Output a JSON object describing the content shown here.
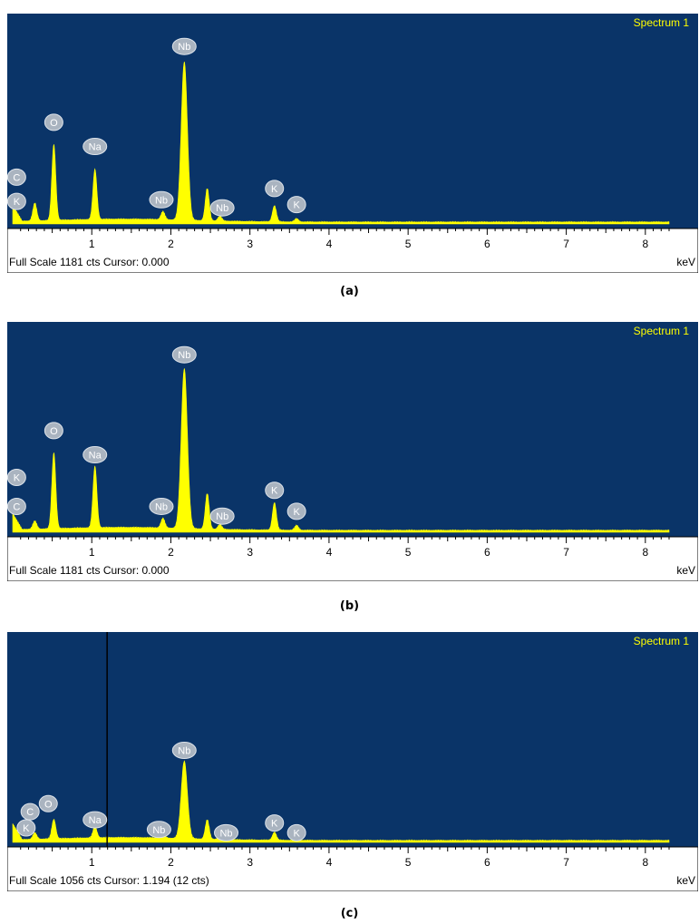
{
  "chart_data": [
    {
      "type": "line",
      "panel_label": "(a)",
      "legend_text": "Spectrum 1",
      "status_text": "Full Scale 1181 cts Cursor: 0.000",
      "x_unit": "keV",
      "x_ticks": [
        "1",
        "2",
        "3",
        "4",
        "5",
        "6",
        "7",
        "8"
      ],
      "xlim": [
        0.0,
        8.3
      ],
      "full_scale_cts": 1181,
      "peaks": [
        {
          "element": "C",
          "x": 0.28,
          "y": 0.11
        },
        {
          "element": "O",
          "x": 0.52,
          "y": 0.47
        },
        {
          "element": "Na",
          "x": 1.04,
          "y": 0.31
        },
        {
          "element": "Nb",
          "x": 1.9,
          "y": 0.05
        },
        {
          "element": "Nb",
          "x": 2.17,
          "y": 0.98
        },
        {
          "element": "Nb",
          "x": 2.46,
          "y": 0.2
        },
        {
          "element": "Nb",
          "x": 2.62,
          "y": 0.03
        },
        {
          "element": "K",
          "x": 3.31,
          "y": 0.1
        },
        {
          "element": "K",
          "x": 3.59,
          "y": 0.02
        }
      ],
      "labels": [
        {
          "text": "Nb",
          "x": 2.17,
          "y": 1.1
        },
        {
          "text": "O",
          "x": 0.52,
          "y": 0.63
        },
        {
          "text": "Na",
          "x": 1.04,
          "y": 0.48
        },
        {
          "text": "C",
          "x": 0.05,
          "y": 0.29
        },
        {
          "text": "K",
          "x": 0.05,
          "y": 0.14
        },
        {
          "text": "Nb",
          "x": 1.88,
          "y": 0.15
        },
        {
          "text": "Nb",
          "x": 2.65,
          "y": 0.1
        },
        {
          "text": "K",
          "x": 3.31,
          "y": 0.22
        },
        {
          "text": "K",
          "x": 3.59,
          "y": 0.12
        }
      ]
    },
    {
      "type": "line",
      "panel_label": "(b)",
      "legend_text": "Spectrum 1",
      "status_text": "Full Scale 1181 cts Cursor: 0.000",
      "x_unit": "keV",
      "x_ticks": [
        "1",
        "2",
        "3",
        "4",
        "5",
        "6",
        "7",
        "8"
      ],
      "xlim": [
        0.0,
        8.3
      ],
      "full_scale_cts": 1181,
      "peaks": [
        {
          "element": "C",
          "x": 0.28,
          "y": 0.05
        },
        {
          "element": "O",
          "x": 0.52,
          "y": 0.47
        },
        {
          "element": "Na",
          "x": 1.04,
          "y": 0.38
        },
        {
          "element": "Nb",
          "x": 1.9,
          "y": 0.06
        },
        {
          "element": "Nb",
          "x": 2.17,
          "y": 0.99
        },
        {
          "element": "Nb",
          "x": 2.46,
          "y": 0.22
        },
        {
          "element": "Nb",
          "x": 2.62,
          "y": 0.03
        },
        {
          "element": "K",
          "x": 3.31,
          "y": 0.17
        },
        {
          "element": "K",
          "x": 3.59,
          "y": 0.03
        }
      ],
      "labels": [
        {
          "text": "Nb",
          "x": 2.17,
          "y": 1.1
        },
        {
          "text": "O",
          "x": 0.52,
          "y": 0.63
        },
        {
          "text": "Na",
          "x": 1.04,
          "y": 0.48
        },
        {
          "text": "K",
          "x": 0.05,
          "y": 0.34
        },
        {
          "text": "C",
          "x": 0.05,
          "y": 0.16
        },
        {
          "text": "Nb",
          "x": 1.88,
          "y": 0.16
        },
        {
          "text": "Nb",
          "x": 2.65,
          "y": 0.1
        },
        {
          "text": "K",
          "x": 3.31,
          "y": 0.26
        },
        {
          "text": "K",
          "x": 3.59,
          "y": 0.13
        }
      ]
    },
    {
      "type": "line",
      "panel_label": "(c)",
      "legend_text": "Spectrum 1",
      "status_text": "Full Scale 1056 cts Cursor: 1.194  (12 cts)",
      "x_unit": "keV",
      "x_ticks": [
        "1",
        "2",
        "3",
        "4",
        "5",
        "6",
        "7",
        "8"
      ],
      "xlim": [
        0.0,
        8.3
      ],
      "full_scale_cts": 1056,
      "cursor_kev": 1.194,
      "peaks": [
        {
          "element": "C",
          "x": 0.28,
          "y": 0.04
        },
        {
          "element": "O",
          "x": 0.52,
          "y": 0.12
        },
        {
          "element": "Na",
          "x": 1.04,
          "y": 0.07
        },
        {
          "element": "Nb",
          "x": 1.9,
          "y": 0.03
        },
        {
          "element": "Nb",
          "x": 2.17,
          "y": 0.48
        },
        {
          "element": "Nb",
          "x": 2.46,
          "y": 0.12
        },
        {
          "element": "Nb",
          "x": 2.62,
          "y": 0.02
        },
        {
          "element": "K",
          "x": 3.31,
          "y": 0.05
        },
        {
          "element": "K",
          "x": 3.59,
          "y": 0.02
        }
      ],
      "labels": [
        {
          "text": "Nb",
          "x": 2.17,
          "y": 0.57
        },
        {
          "text": "O",
          "x": 0.45,
          "y": 0.24
        },
        {
          "text": "C",
          "x": 0.22,
          "y": 0.19
        },
        {
          "text": "K",
          "x": 0.17,
          "y": 0.09
        },
        {
          "text": "Na",
          "x": 1.04,
          "y": 0.14
        },
        {
          "text": "Nb",
          "x": 1.85,
          "y": 0.08
        },
        {
          "text": "Nb",
          "x": 2.7,
          "y": 0.06
        },
        {
          "text": "K",
          "x": 3.31,
          "y": 0.12
        },
        {
          "text": "K",
          "x": 3.59,
          "y": 0.06
        }
      ]
    }
  ],
  "colors": {
    "plot_bg": "#0a3468",
    "spectrum": "#ffff00",
    "label_fill": "#aab4c0",
    "label_text": "#ffffff",
    "axis_bg": "#ffffff",
    "cursor": "#000000"
  }
}
